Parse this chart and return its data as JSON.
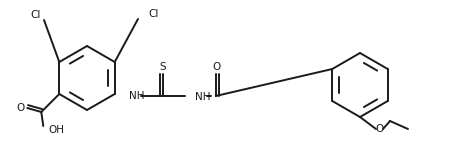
{
  "bg_color": "#ffffff",
  "line_color": "#1a1a1a",
  "line_width": 1.4,
  "font_size": 7.5,
  "fig_width": 4.68,
  "fig_height": 1.58,
  "dpi": 100
}
